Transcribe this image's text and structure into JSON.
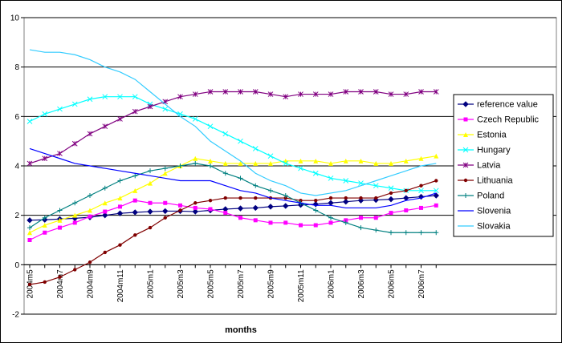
{
  "chart_data": {
    "type": "line",
    "x_label": "months",
    "categories": [
      "2004m5",
      null,
      "2004m7",
      null,
      "2004m9",
      null,
      "2004m11",
      null,
      "2005m1",
      null,
      "2005m3",
      null,
      "2005m5",
      null,
      "2005m7",
      null,
      "2005m9",
      null,
      "2005m11",
      null,
      "2006m1",
      null,
      "2006m3",
      null,
      "2006m5",
      null,
      "2006m7",
      null
    ],
    "ylim": [
      -2,
      10
    ],
    "yticks": [
      -2,
      0,
      2,
      4,
      6,
      8,
      10
    ],
    "grid": true,
    "legend": "right",
    "series": [
      {
        "name": "reference value",
        "color": "#000080",
        "marker": "diamond",
        "values": [
          1.8,
          1.82,
          1.85,
          1.88,
          1.92,
          2.0,
          2.08,
          2.12,
          2.15,
          2.17,
          2.17,
          2.15,
          2.2,
          2.25,
          2.28,
          2.3,
          2.35,
          2.38,
          2.42,
          2.45,
          2.5,
          2.55,
          2.6,
          2.62,
          2.65,
          2.7,
          2.75,
          2.8
        ]
      },
      {
        "name": "Czech Republic",
        "color": "#ff00ff",
        "marker": "square",
        "values": [
          1.0,
          1.3,
          1.5,
          1.7,
          1.95,
          2.15,
          2.35,
          2.6,
          2.5,
          2.5,
          2.4,
          2.3,
          2.25,
          2.1,
          1.9,
          1.8,
          1.7,
          1.7,
          1.6,
          1.6,
          1.7,
          1.8,
          1.9,
          1.9,
          2.1,
          2.2,
          2.3,
          2.4
        ]
      },
      {
        "name": "Estonia",
        "color": "#ffff00",
        "marker": "triangle",
        "values": [
          1.3,
          1.6,
          1.8,
          2.0,
          2.2,
          2.5,
          2.7,
          3.0,
          3.3,
          3.7,
          4.0,
          4.3,
          4.2,
          4.1,
          4.1,
          4.1,
          4.1,
          4.2,
          4.2,
          4.2,
          4.1,
          4.2,
          4.2,
          4.1,
          4.1,
          4.2,
          4.3,
          4.4
        ]
      },
      {
        "name": "Hungary",
        "color": "#00ffff",
        "marker": "x",
        "values": [
          5.8,
          6.1,
          6.3,
          6.5,
          6.7,
          6.8,
          6.8,
          6.8,
          6.5,
          6.3,
          6.1,
          5.9,
          5.6,
          5.3,
          5.0,
          4.7,
          4.4,
          4.1,
          3.9,
          3.7,
          3.5,
          3.4,
          3.3,
          3.2,
          3.1,
          3.0,
          3.0,
          3.0
        ]
      },
      {
        "name": "Latvia",
        "color": "#800080",
        "marker": "star",
        "values": [
          4.1,
          4.3,
          4.5,
          4.9,
          5.3,
          5.6,
          5.9,
          6.2,
          6.4,
          6.6,
          6.8,
          6.9,
          7.0,
          7.0,
          7.0,
          7.0,
          6.9,
          6.8,
          6.9,
          6.9,
          6.9,
          7.0,
          7.0,
          7.0,
          6.9,
          6.9,
          7.0,
          7.0
        ]
      },
      {
        "name": "Lithuania",
        "color": "#800000",
        "marker": "circle",
        "values": [
          -0.8,
          -0.7,
          -0.5,
          -0.2,
          0.1,
          0.5,
          0.8,
          1.2,
          1.5,
          1.9,
          2.2,
          2.5,
          2.6,
          2.7,
          2.7,
          2.7,
          2.7,
          2.7,
          2.6,
          2.6,
          2.7,
          2.7,
          2.7,
          2.7,
          2.9,
          3.0,
          3.2,
          3.4
        ]
      },
      {
        "name": "Poland",
        "color": "#008080",
        "marker": "plus",
        "values": [
          1.5,
          1.9,
          2.2,
          2.5,
          2.8,
          3.1,
          3.4,
          3.6,
          3.8,
          3.9,
          4.0,
          4.1,
          4.0,
          3.7,
          3.5,
          3.2,
          3.0,
          2.8,
          2.5,
          2.2,
          1.9,
          1.7,
          1.5,
          1.4,
          1.3,
          1.3,
          1.3,
          1.3
        ]
      },
      {
        "name": "Slovenia",
        "color": "#0000ff",
        "marker": "none",
        "values": [
          4.7,
          4.5,
          4.3,
          4.1,
          4.0,
          3.9,
          3.8,
          3.7,
          3.6,
          3.5,
          3.4,
          3.4,
          3.4,
          3.2,
          3.0,
          2.9,
          2.7,
          2.6,
          2.5,
          2.4,
          2.4,
          2.3,
          2.3,
          2.3,
          2.4,
          2.6,
          2.7,
          2.9
        ]
      },
      {
        "name": "Slovakia",
        "color": "#33ccff",
        "marker": "none",
        "values": [
          8.7,
          8.6,
          8.6,
          8.5,
          8.3,
          8.0,
          7.8,
          7.5,
          7.0,
          6.5,
          6.0,
          5.6,
          5.0,
          4.6,
          4.2,
          3.7,
          3.4,
          3.2,
          2.9,
          2.8,
          2.9,
          3.0,
          3.2,
          3.4,
          3.6,
          3.8,
          4.0,
          4.1
        ]
      }
    ]
  }
}
